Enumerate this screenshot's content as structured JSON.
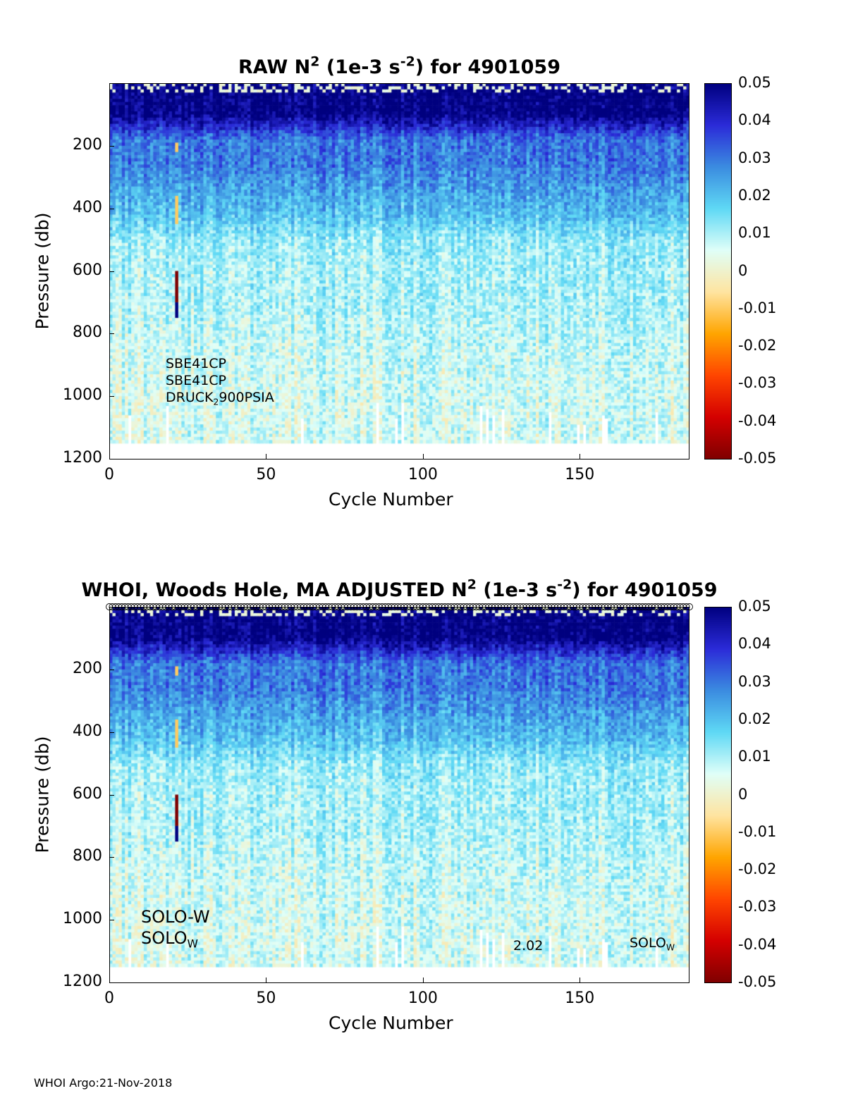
{
  "panels": [
    {
      "title_pre": "RAW N",
      "title_sup1": "2",
      "title_mid": " (1e-3 s",
      "title_sup2": "-2",
      "title_post": ") for 4901059",
      "xlabel": "Cycle Number",
      "ylabel": "Pressure (db)",
      "annotations": {
        "sensor1": "SBE41CP",
        "sensor2": "SBE41CP",
        "sensor3_main": "DRUCK",
        "sensor3_sub": "2",
        "sensor3_post": "900PSIA"
      }
    },
    {
      "title_pre": "WHOI, Woods Hole, MA  ADJUSTED N",
      "title_sup1": "2",
      "title_mid": " (1e-3 s",
      "title_sup2": "-2",
      "title_post": ") for 4901059",
      "xlabel": "Cycle Number",
      "ylabel": "Pressure (db)",
      "annotations": {
        "model1": "SOLO-W",
        "model2_main": "SOLO",
        "model2_sub": "W",
        "firmware": "2.02",
        "model3_main": "SOLO",
        "model3_sub": "W"
      }
    }
  ],
  "footer": "WHOI Argo:21-Nov-2018",
  "chart_data": [
    {
      "type": "heatmap",
      "title": "RAW N^2 (1e-3 s^-2) for 4901059",
      "xlabel": "Cycle Number",
      "ylabel": "Pressure (db)",
      "xlim": [
        0,
        185
      ],
      "ylim": [
        1200,
        0
      ],
      "y_reversed": true,
      "xticks": [
        0,
        50,
        100,
        150
      ],
      "yticks": [
        200,
        400,
        600,
        800,
        1000,
        1200
      ],
      "clim": [
        -0.05,
        0.05
      ],
      "colorbar_ticks": [
        0.05,
        0.04,
        0.03,
        0.02,
        0.01,
        0,
        -0.01,
        -0.02,
        -0.03,
        -0.04,
        -0.05
      ],
      "colormap": [
        "#7f0000",
        "#d40000",
        "#ff4500",
        "#ffa500",
        "#ffe4a0",
        "#e0fff8",
        "#5fd9f5",
        "#3b8ce0",
        "#2b2bd8",
        "#00007f"
      ],
      "summary_profile": {
        "pressure_db": [
          30,
          100,
          180,
          250,
          330,
          420,
          500,
          600,
          700,
          800,
          900,
          1000,
          1100
        ],
        "typical_value": [
          0.05,
          0.05,
          0.03,
          0.03,
          0.025,
          0.02,
          0.012,
          0.01,
          0.01,
          0.008,
          0.007,
          0.006,
          0.006
        ]
      },
      "anomalies": [
        {
          "cycle": 21,
          "pressure_range_db": [
            190,
            220
          ],
          "value": -0.01
        },
        {
          "cycle": 21,
          "pressure_range_db": [
            360,
            450
          ],
          "value": -0.01
        },
        {
          "cycle": 21,
          "pressure_range_db": [
            600,
            700
          ],
          "value": -0.05
        },
        {
          "cycle": 21,
          "pressure_range_db": [
            700,
            750
          ],
          "value": 0.05
        }
      ]
    },
    {
      "type": "heatmap",
      "title": "WHOI, Woods Hole, MA  ADJUSTED N^2 (1e-3 s^-2) for 4901059",
      "xlabel": "Cycle Number",
      "ylabel": "Pressure (db)",
      "xlim": [
        0,
        185
      ],
      "ylim": [
        1200,
        0
      ],
      "y_reversed": true,
      "xticks": [
        0,
        50,
        100,
        150
      ],
      "yticks": [
        200,
        400,
        600,
        800,
        1000,
        1200
      ],
      "clim": [
        -0.05,
        0.05
      ],
      "colorbar_ticks": [
        0.05,
        0.04,
        0.03,
        0.02,
        0.01,
        0,
        -0.01,
        -0.02,
        -0.03,
        -0.04,
        -0.05
      ],
      "colormap": [
        "#7f0000",
        "#d40000",
        "#ff4500",
        "#ffa500",
        "#ffe4a0",
        "#e0fff8",
        "#5fd9f5",
        "#3b8ce0",
        "#2b2bd8",
        "#00007f"
      ],
      "summary_profile": {
        "pressure_db": [
          30,
          100,
          180,
          250,
          330,
          420,
          500,
          600,
          700,
          800,
          900,
          1000,
          1100
        ],
        "typical_value": [
          0.05,
          0.05,
          0.03,
          0.03,
          0.025,
          0.02,
          0.012,
          0.01,
          0.01,
          0.008,
          0.007,
          0.006,
          0.006
        ]
      },
      "anomalies": [
        {
          "cycle": 21,
          "pressure_range_db": [
            190,
            220
          ],
          "value": -0.01
        },
        {
          "cycle": 21,
          "pressure_range_db": [
            360,
            450
          ],
          "value": -0.01
        },
        {
          "cycle": 21,
          "pressure_range_db": [
            600,
            700
          ],
          "value": -0.05
        },
        {
          "cycle": 21,
          "pressure_range_db": [
            700,
            750
          ],
          "value": 0.05
        }
      ],
      "top_markers": "open circles along the top edge for each cycle"
    }
  ]
}
